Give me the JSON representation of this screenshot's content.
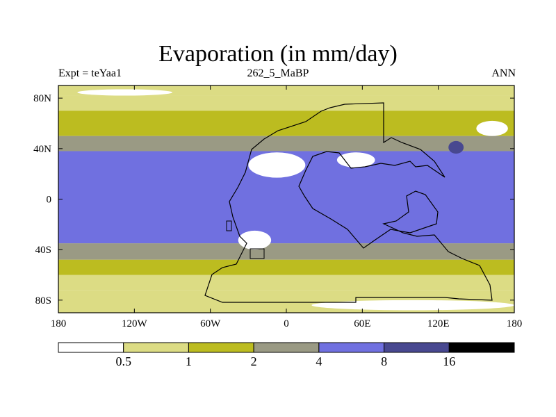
{
  "chart_data": {
    "type": "heatmap",
    "title": "Evaporation (in mm/day)",
    "left_string": "Expt = teYaa1",
    "center_string": "262_5_MaBP",
    "right_string": "ANN",
    "variable": "Evaporation",
    "units": "mm/day",
    "x_axis": {
      "range": [
        -180,
        180
      ],
      "ticks": [
        -180,
        -120,
        -60,
        0,
        60,
        120,
        180
      ],
      "tick_labels": [
        "180",
        "120W",
        "60W",
        "0",
        "60E",
        "120E",
        "180"
      ]
    },
    "y_axis": {
      "range": [
        -90,
        90
      ],
      "ticks": [
        80,
        40,
        0,
        -40,
        -80
      ],
      "tick_labels": [
        "80N",
        "40N",
        "0",
        "40S",
        "80S"
      ]
    },
    "legend": {
      "placement": "bottom",
      "levels": [
        0.5,
        1,
        2,
        4,
        8,
        16
      ],
      "labels": [
        "0.5",
        "1",
        "2",
        "4",
        "8",
        "16"
      ],
      "colors": [
        "#ffffff",
        "#dcdc84",
        "#bcbc20",
        "#9a9a84",
        "#7070e0",
        "#484890",
        "#000000"
      ]
    },
    "zonal_bands": [
      {
        "lat": [
          82,
          90
        ],
        "bin": 1
      },
      {
        "lat": [
          70,
          82
        ],
        "bin": 1
      },
      {
        "lat": [
          60,
          70
        ],
        "bin": 2
      },
      {
        "lat": [
          50,
          60
        ],
        "bin": 2
      },
      {
        "lat": [
          38,
          50
        ],
        "bin": 3
      },
      {
        "lat": [
          -35,
          38
        ],
        "bin": 4
      },
      {
        "lat": [
          -48,
          -35
        ],
        "bin": 3
      },
      {
        "lat": [
          -60,
          -48
        ],
        "bin": 2
      },
      {
        "lat": [
          -72,
          -60
        ],
        "bin": 1
      },
      {
        "lat": [
          -90,
          -72
        ],
        "bin": 1
      }
    ],
    "features": [
      {
        "name": "north-polar-bright",
        "lon": [
          -165,
          -90
        ],
        "lat": [
          82,
          87
        ],
        "bin": 0
      },
      {
        "name": "eastern-desert",
        "lon": [
          -30,
          15
        ],
        "lat": [
          17,
          37
        ],
        "bin": 0
      },
      {
        "name": "western-desert",
        "lon": [
          40,
          70
        ],
        "lat": [
          25,
          37
        ],
        "bin": 0
      },
      {
        "name": "southern-desert",
        "lon": [
          -38,
          -12
        ],
        "lat": [
          -40,
          -25
        ],
        "bin": 0
      },
      {
        "name": "far-east-bright",
        "lon": [
          150,
          175
        ],
        "lat": [
          50,
          62
        ],
        "bin": 0
      },
      {
        "name": "south-polar-bright",
        "lon": [
          20,
          180
        ],
        "lat": [
          -88,
          -80
        ],
        "bin": 0
      },
      {
        "name": "warm-pool-max",
        "lon": [
          128,
          140
        ],
        "lat": [
          36,
          46
        ],
        "bin": 5
      }
    ]
  }
}
